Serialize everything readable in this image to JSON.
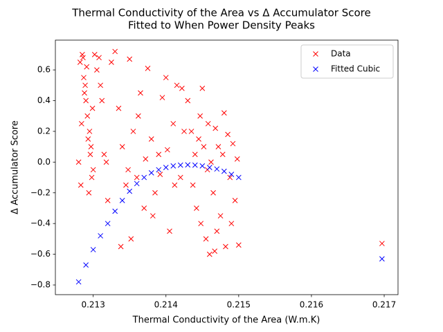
{
  "chart_data": {
    "type": "scatter",
    "title": [
      "Thermal Conductivity of the Area vs Δ Accumulator Score",
      "Fitted to When Power Density Peaks"
    ],
    "x_label": "Thermal Conductivity of the Area (W.m.K)",
    "y_label": "Δ Accumulator Score",
    "xlim": [
      0.21248,
      0.21719
    ],
    "ylim": [
      -0.863,
      0.794
    ],
    "xticks": [
      0.213,
      0.214,
      0.215,
      0.216,
      0.217
    ],
    "yticks": [
      {
        "value": -0.8,
        "label": "−0.8"
      },
      {
        "value": -0.6,
        "label": "−0.6"
      },
      {
        "value": -0.4,
        "label": "−0.4"
      },
      {
        "value": -0.2,
        "label": "−0.2"
      },
      {
        "value": 0,
        "label": "0.0"
      },
      0.2,
      0.4,
      0.6
    ],
    "legend": "upper right",
    "series": [
      {
        "name": "Data",
        "color": "#ff0000",
        "x": [
          0.2128,
          0.21282,
          0.21285,
          0.21287,
          0.2129,
          0.21292,
          0.21295,
          0.21297,
          0.213,
          0.21283,
          0.21286,
          0.21288,
          0.21291,
          0.21293,
          0.21296,
          0.21298,
          0.21284,
          0.21289,
          0.21294,
          0.21299,
          0.21302,
          0.21305,
          0.21308,
          0.2131,
          0.21312,
          0.21315,
          0.21318,
          0.2132,
          0.21325,
          0.2133,
          0.21335,
          0.2134,
          0.21345,
          0.2135,
          0.21355,
          0.2136,
          0.21365,
          0.2137,
          0.21375,
          0.2138,
          0.21385,
          0.2139,
          0.21395,
          0.214,
          0.21405,
          0.2141,
          0.21415,
          0.2142,
          0.21425,
          0.2143,
          0.21338,
          0.21348,
          0.21352,
          0.21362,
          0.21372,
          0.21382,
          0.21392,
          0.21402,
          0.21412,
          0.21422,
          0.21435,
          0.2144,
          0.21442,
          0.21445,
          0.21448,
          0.2145,
          0.21452,
          0.21455,
          0.21458,
          0.2146,
          0.21462,
          0.21465,
          0.21468,
          0.2147,
          0.21472,
          0.21475,
          0.21478,
          0.2148,
          0.21482,
          0.21485,
          0.21488,
          0.2149,
          0.21492,
          0.21495,
          0.21498,
          0.215,
          0.21437,
          0.21447,
          0.21457,
          0.21467,
          0.21697
        ],
        "values": [
          0.0,
          0.65,
          0.7,
          0.55,
          0.4,
          0.3,
          0.2,
          0.1,
          -0.05,
          -0.15,
          0.68,
          0.45,
          0.62,
          0.15,
          0.05,
          -0.1,
          0.25,
          0.5,
          -0.2,
          0.35,
          0.7,
          0.6,
          0.68,
          0.5,
          0.4,
          0.05,
          0.0,
          -0.25,
          0.65,
          0.72,
          0.35,
          0.1,
          -0.15,
          0.67,
          0.2,
          -0.1,
          0.45,
          -0.3,
          0.61,
          0.15,
          -0.2,
          0.05,
          0.42,
          0.55,
          -0.45,
          0.25,
          0.5,
          -0.1,
          0.2,
          0.4,
          -0.55,
          -0.05,
          -0.5,
          0.3,
          0.02,
          -0.35,
          -0.08,
          0.08,
          -0.15,
          0.48,
          0.2,
          0.05,
          -0.3,
          0.15,
          -0.4,
          0.48,
          0.1,
          -0.5,
          0.25,
          -0.6,
          0.0,
          -0.2,
          0.22,
          -0.45,
          0.1,
          -0.35,
          0.05,
          0.32,
          -0.55,
          0.18,
          -0.1,
          -0.4,
          0.12,
          -0.25,
          0.02,
          -0.54,
          -0.15,
          0.3,
          -0.05,
          -0.58,
          -0.53
        ]
      },
      {
        "name": "Fitted Cubic",
        "color": "#0000ff",
        "x": [
          0.2128,
          0.2129,
          0.213,
          0.2131,
          0.2132,
          0.2133,
          0.2134,
          0.2135,
          0.2136,
          0.2137,
          0.2138,
          0.2139,
          0.214,
          0.2141,
          0.2142,
          0.2143,
          0.2144,
          0.2145,
          0.2146,
          0.2147,
          0.2148,
          0.2149,
          0.215,
          0.21697
        ],
        "values": [
          -0.78,
          -0.67,
          -0.57,
          -0.48,
          -0.4,
          -0.32,
          -0.25,
          -0.19,
          -0.14,
          -0.1,
          -0.07,
          -0.05,
          -0.035,
          -0.025,
          -0.02,
          -0.018,
          -0.02,
          -0.025,
          -0.035,
          -0.045,
          -0.06,
          -0.08,
          -0.1,
          -0.63
        ]
      }
    ]
  }
}
